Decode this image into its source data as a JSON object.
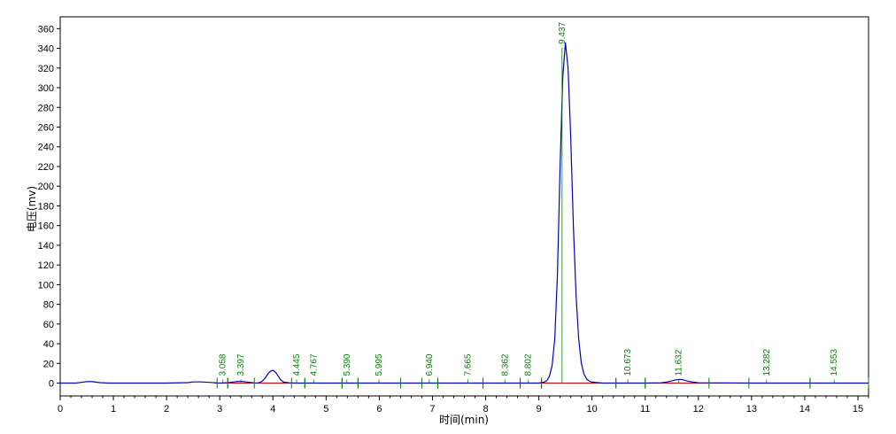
{
  "chart_data": {
    "type": "line",
    "xlabel": "时间(min)",
    "ylabel": "电压(mv)",
    "xlim": [
      0,
      15.2
    ],
    "ylim": [
      -13,
      372
    ],
    "x_ticks": [
      "0",
      "1",
      "2",
      "3",
      "4",
      "5",
      "6",
      "7",
      "8",
      "9",
      "10",
      "11",
      "12",
      "13",
      "14",
      "15"
    ],
    "y_ticks": [
      "0",
      "20",
      "40",
      "60",
      "80",
      "100",
      "120",
      "140",
      "160",
      "180",
      "200",
      "220",
      "240",
      "260",
      "280",
      "300",
      "320",
      "340",
      "360"
    ],
    "trace_color": "#0000c0",
    "baseline_color": "#d00000",
    "label_color": "#008000",
    "signal": {
      "x": [
        0,
        0.3,
        0.4,
        0.5,
        0.6,
        0.75,
        0.9,
        1.2,
        2.0,
        2.4,
        2.5,
        2.65,
        2.8,
        2.95,
        3.05,
        3.1,
        3.2,
        3.3,
        3.4,
        3.5,
        3.6,
        3.65,
        3.7,
        3.75,
        3.8,
        3.85,
        3.9,
        3.95,
        4.0,
        4.05,
        4.1,
        4.15,
        4.2,
        4.3,
        4.4,
        5.0,
        6.0,
        7.0,
        8.0,
        9.0,
        9.1,
        9.15,
        9.2,
        9.25,
        9.3,
        9.35,
        9.4,
        9.45,
        9.5,
        9.55,
        9.6,
        9.65,
        9.7,
        9.75,
        9.8,
        9.85,
        9.9,
        9.95,
        10.0,
        10.1,
        10.2,
        10.5,
        11.0,
        11.3,
        11.4,
        11.5,
        11.55,
        11.6,
        11.65,
        11.7,
        11.75,
        11.8,
        11.9,
        12.0,
        13.0,
        14.0,
        15.2
      ],
      "y": [
        0,
        0,
        0.8,
        1.5,
        1.5,
        0.5,
        0,
        0,
        0,
        0.5,
        1.2,
        1.2,
        0.8,
        0.2,
        0,
        0.3,
        0.8,
        1.5,
        1.8,
        1.2,
        0.5,
        0.2,
        0,
        0.5,
        2,
        5,
        9,
        12,
        13,
        11,
        7,
        3,
        1,
        0.3,
        0,
        0,
        0,
        0,
        0,
        0,
        1,
        2.5,
        7,
        18,
        45,
        110,
        220,
        310,
        346,
        320,
        250,
        160,
        90,
        45,
        20,
        9,
        4,
        2,
        1,
        0.5,
        0,
        0,
        0,
        0.3,
        1,
        2.2,
        3,
        3.5,
        3.8,
        3.5,
        2.8,
        2,
        1,
        0.3,
        0,
        0,
        0
      ]
    },
    "peaks": [
      {
        "rt": 3.058,
        "label": "3.058",
        "start": 2.95,
        "end": 3.15
      },
      {
        "rt": 3.397,
        "label": "3.397",
        "start": 3.15,
        "end": 3.65
      },
      {
        "rt": 4.445,
        "label": "4.445",
        "start": 4.35,
        "end": 4.6
      },
      {
        "rt": 4.767,
        "label": "4.767",
        "start": 4.6,
        "end": 5.3
      },
      {
        "rt": 5.39,
        "label": "5.390",
        "start": 5.3,
        "end": 5.6
      },
      {
        "rt": 5.995,
        "label": "5.995",
        "start": 5.6,
        "end": 6.4
      },
      {
        "rt": 6.94,
        "label": "6.940",
        "start": 6.8,
        "end": 7.1
      },
      {
        "rt": 7.665,
        "label": "7.665",
        "start": 7.1,
        "end": 7.95
      },
      {
        "rt": 8.362,
        "label": "8.362",
        "start": 7.95,
        "end": 8.65
      },
      {
        "rt": 8.802,
        "label": "8.802",
        "start": 8.65,
        "end": 9.05
      },
      {
        "rt": 9.437,
        "label": "9.437",
        "start": 9.05,
        "end": 10.45
      },
      {
        "rt": 10.673,
        "label": "10.673",
        "start": 10.45,
        "end": 11.0
      },
      {
        "rt": 11.632,
        "label": "11.632",
        "start": 11.0,
        "end": 12.2
      },
      {
        "rt": 13.282,
        "label": "13.282",
        "start": 12.95,
        "end": 14.1
      },
      {
        "rt": 14.553,
        "label": "14.553",
        "start": 14.1,
        "end": 15.2
      }
    ]
  }
}
